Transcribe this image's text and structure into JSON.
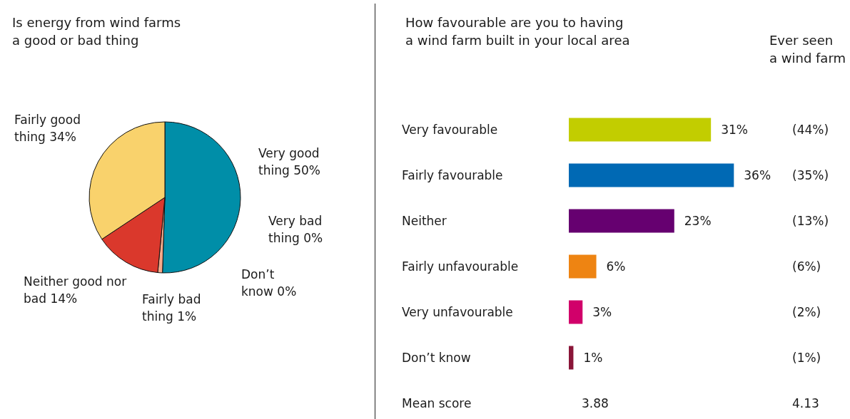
{
  "chart_data": [
    {
      "type": "pie",
      "title": "Is energy from wind farms\na good or bad thing",
      "categories": [
        "Very good thing",
        "Very bad thing",
        "Don’t know",
        "Fairly bad thing",
        "Neither good nor bad",
        "Fairly good thing"
      ],
      "values": [
        50,
        0,
        0,
        1,
        14,
        34
      ],
      "colors": [
        "#008ea8",
        "#8a1538",
        "#999999",
        "#f4a98a",
        "#da382c",
        "#f9d26c"
      ],
      "value_labels": [
        "50%",
        "0%",
        "0%",
        "1%",
        "14%",
        "34%"
      ]
    },
    {
      "type": "bar",
      "orientation": "horizontal",
      "title": "How favourable are you to having\na wind farm built in your local area",
      "categories": [
        "Very favourable",
        "Fairly favourable",
        "Neither",
        "Fairly unfavourable",
        "Very unfavourable",
        "Don’t know"
      ],
      "values": [
        31,
        36,
        23,
        6,
        3,
        1
      ],
      "colors": [
        "#c2cd00",
        "#0069b4",
        "#660070",
        "#ee8412",
        "#d1006a",
        "#8a1538"
      ],
      "value_labels": [
        "31%",
        "36%",
        "23%",
        "6%",
        "3%",
        "1%"
      ],
      "y2label": "Ever seen\na wind farm",
      "y2_categories": [
        "(44%)",
        "(35%)",
        "(13%)",
        "(6%)",
        "(2%)",
        "(1%)"
      ],
      "annotations": [
        "Mean score",
        "3.88",
        "4.13"
      ]
    }
  ]
}
